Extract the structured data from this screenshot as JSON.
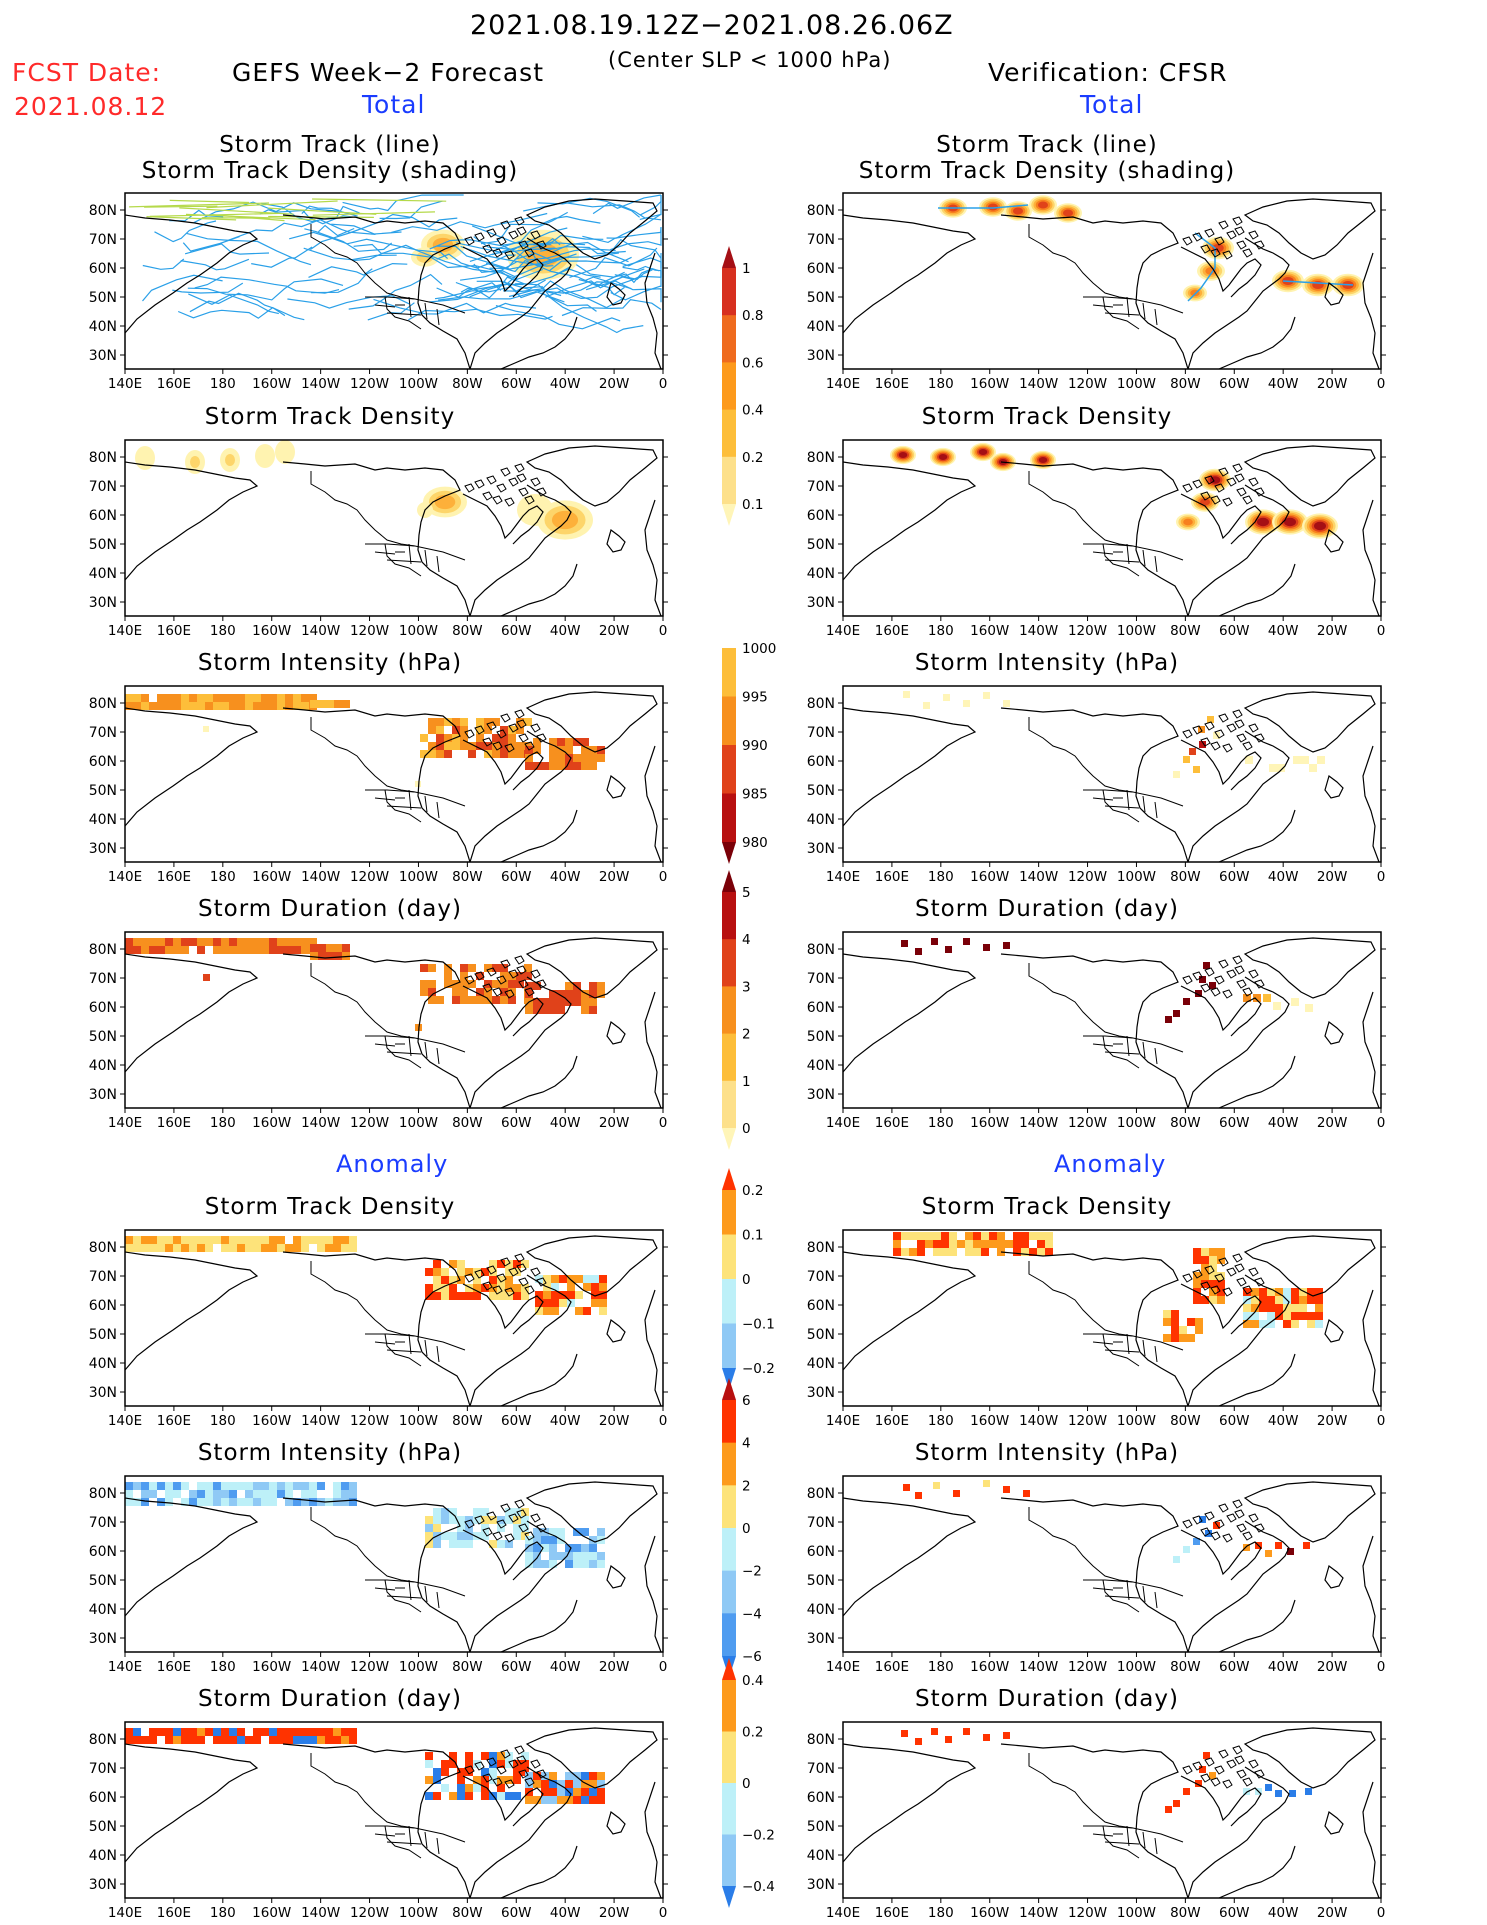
{
  "header": {
    "title": "2021.08.19.12Z−2021.08.26.06Z",
    "subtitle": "(Center SLP < 1000 hPa)",
    "fcst_label": "FCST Date:",
    "fcst_date": "2021.08.12",
    "left_title": "GEFS Week−2 Forecast",
    "right_title": "Verification: CFSR"
  },
  "sections": {
    "total_left": "Total",
    "total_right": "Total",
    "anomaly_left": "Anomaly",
    "anomaly_right": "Anomaly"
  },
  "axes": {
    "lat_labels": [
      "80N",
      "70N",
      "60N",
      "50N",
      "40N",
      "30N"
    ],
    "lon_labels": [
      "140E",
      "160E",
      "180",
      "160W",
      "140W",
      "120W",
      "100W",
      "80W",
      "60W",
      "40W",
      "20W",
      "0"
    ]
  },
  "rows": [
    {
      "title_line1": "Storm Track (line)",
      "title_line2": "Storm Track Density (shading)"
    },
    {
      "title": "Storm Track Density"
    },
    {
      "title": "Storm Intensity (hPa)"
    },
    {
      "title": "Storm Duration (day)"
    },
    {
      "title": "Storm Track Density"
    },
    {
      "title": "Storm Intensity (hPa)"
    },
    {
      "title": "Storm Duration (day)"
    }
  ],
  "colorbars": [
    {
      "name": "density",
      "labels": [
        "1",
        "0.8",
        "0.6",
        "0.4",
        "0.2",
        "0.1"
      ],
      "colors": [
        "#a50f15",
        "#d7301f",
        "#ef6b1e",
        "#fd9a1c",
        "#fdbe3a",
        "#fde08a",
        "#fff5b8"
      ]
    },
    {
      "name": "intensity",
      "labels": [
        "1000",
        "995",
        "990",
        "985",
        "980"
      ],
      "colors": [
        "#fff5b8",
        "#fdbe3a",
        "#f7901e",
        "#e0421a",
        "#b81010",
        "#7a0008"
      ]
    },
    {
      "name": "duration",
      "labels": [
        "5",
        "4",
        "3",
        "2",
        "1",
        "0"
      ],
      "colors": [
        "#7a0008",
        "#b81010",
        "#e0421a",
        "#f7901e",
        "#fdbe3a",
        "#fde08a",
        "#fff5b8"
      ]
    },
    {
      "name": "anom-density",
      "labels": [
        "0.2",
        "0.1",
        "0",
        "−0.1",
        "−0.2"
      ],
      "colors": [
        "#ff3300",
        "#fd9a1c",
        "#fde37a",
        "#bdf0f8",
        "#8fc9f5",
        "#2a7de8"
      ]
    },
    {
      "name": "anom-intensity",
      "labels": [
        "6",
        "4",
        "2",
        "0",
        "−2",
        "−4",
        "−6"
      ],
      "colors": [
        "#b81010",
        "#ff3300",
        "#fd9a1c",
        "#fde37a",
        "#bdf0f8",
        "#8fc9f5",
        "#4f9cf0",
        "#2a7de8"
      ]
    },
    {
      "name": "anom-duration",
      "labels": [
        "0.4",
        "0.2",
        "0",
        "−0.2",
        "−0.4"
      ],
      "colors": [
        "#ff3300",
        "#fd9a1c",
        "#fde37a",
        "#bdf0f8",
        "#8fc9f5",
        "#2a7de8"
      ]
    }
  ],
  "colors": {
    "track_forecast": "#2aa0e8",
    "track_verification": "#2aa0e8",
    "title_red": "#ff2a2a",
    "title_blue": "#1a3cff"
  }
}
